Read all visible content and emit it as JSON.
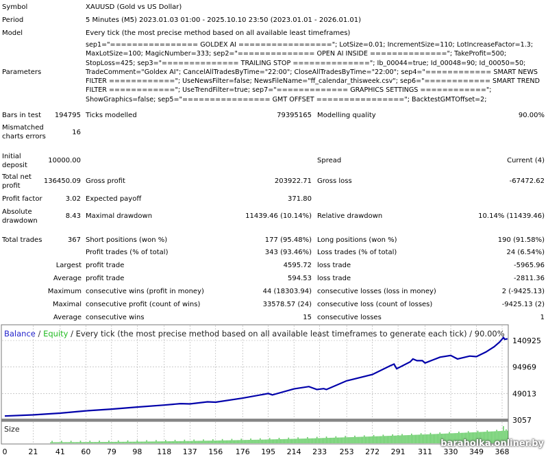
{
  "report": {
    "symbol": {
      "label": "Symbol",
      "value": "XAUUSD (Gold vs US Dollar)"
    },
    "period": {
      "label": "Period",
      "value": "5 Minutes (M5) 2023.01.03 01:00 - 2025.10.10 23:50 (2023.01.01 - 2026.01.01)"
    },
    "model": {
      "label": "Model",
      "value": "Every tick (the most precise method based on all available least timeframes)"
    },
    "parameters": {
      "label": "Parameters",
      "value": "sep1=\"================ GOLDEX AI =================\"; LotSize=0.01; IncrementSize=110; LotIncreaseFactor=1.3; MaxLotSize=100; MagicNumber=333; sep2=\"============== OPEN AI INSIDE ==============\"; TakeProfit=500; StopLoss=425; sep3=\"============== TRAILING STOP ==============\"; Ib_00044=true; Id_00048=90; Id_00050=50; TradeComment=\"Goldex AI\"; CancelAllTradesByTime=\"22:00\"; CloseAllTradesByTime=\"22:00\"; sep4=\"============ SMART NEWS FILTER ============\"; UseNewsFilter=false; NewsFileName=\"ff_calendar_thisweek.csv\"; sep6=\"============ SMART TREND FILTER ============\"; UseTrendFilter=true; sep7=\"============= GRAPHICS SETTINGS ============\"; ShowGraphics=false; sep5=\"================ GMT OFFSET ================\"; BacktestGMTOffset=2;"
    },
    "bars_in_test": {
      "label": "Bars in test",
      "value": "194795"
    },
    "ticks_modelled": {
      "label": "Ticks modelled",
      "value": "79395165"
    },
    "modelling_quality": {
      "label": "Modelling quality",
      "value": "90.00%"
    },
    "mismatched": {
      "label": "Mismatched charts errors",
      "value": "16"
    },
    "initial_deposit": {
      "label": "Initial deposit",
      "value": "10000.00"
    },
    "spread": {
      "label": "Spread",
      "value": "Current (4)"
    },
    "total_net_profit": {
      "label": "Total net profit",
      "value": "136450.09"
    },
    "gross_profit": {
      "label": "Gross profit",
      "value": "203922.71"
    },
    "gross_loss": {
      "label": "Gross loss",
      "value": "-67472.62"
    },
    "profit_factor": {
      "label": "Profit factor",
      "value": "3.02"
    },
    "expected_payoff": {
      "label": "Expected payoff",
      "value": "371.80"
    },
    "absolute_drawdown": {
      "label": "Absolute drawdown",
      "value": "8.43"
    },
    "maximal_drawdown": {
      "label": "Maximal drawdown",
      "value": "11439.46 (10.14%)"
    },
    "relative_drawdown": {
      "label": "Relative drawdown",
      "value": "10.14% (11439.46)"
    },
    "total_trades": {
      "label": "Total trades",
      "value": "367"
    },
    "short_positions": {
      "label": "Short positions (won %)",
      "value": "177 (95.48%)"
    },
    "long_positions": {
      "label": "Long positions (won %)",
      "value": "190 (91.58%)"
    },
    "profit_trades": {
      "label": "Profit trades (% of total)",
      "value": "343 (93.46%)"
    },
    "loss_trades": {
      "label": "Loss trades (% of total)",
      "value": "24 (6.54%)"
    },
    "largest": {
      "label": "Largest",
      "profit_label": "profit trade",
      "profit": "4595.72",
      "loss_label": "loss trade",
      "loss": "-5965.96"
    },
    "average": {
      "label": "Average",
      "profit_label": "profit trade",
      "profit": "594.53",
      "loss_label": "loss trade",
      "loss": "-2811.36"
    },
    "maximum": {
      "label": "Maximum",
      "profit_label": "consecutive wins (profit in money)",
      "profit": "44 (18303.94)",
      "loss_label": "consecutive losses (loss in money)",
      "loss": "2 (-9425.13)"
    },
    "maximal": {
      "label": "Maximal",
      "profit_label": "consecutive profit (count of wins)",
      "profit": "33578.57 (24)",
      "loss_label": "consecutive loss (count of losses)",
      "loss": "-9425.13 (2)"
    },
    "average_consec": {
      "label": "Average",
      "profit_label": "consecutive wins",
      "profit": "15",
      "loss_label": "consecutive losses",
      "loss": "1"
    }
  },
  "chart_data": {
    "type": "line",
    "title_balance": "Balance",
    "title_sep1": " / ",
    "title_equity": "Equity",
    "title_rest": " / Every tick (the most precise method based on all available least timeframes to generate each tick) / 90.00%",
    "size_label": "Size",
    "y_ticks": [
      "140925",
      "94969",
      "49013",
      "3057"
    ],
    "y_tick_values": [
      140925,
      94969,
      49013,
      3057
    ],
    "x_ticks": [
      "0",
      "21",
      "41",
      "60",
      "79",
      "98",
      "118",
      "137",
      "156",
      "176",
      "195",
      "214",
      "233",
      "253",
      "272",
      "291",
      "311",
      "330",
      "349",
      "368"
    ],
    "x_range": [
      0,
      372
    ],
    "balance": [
      [
        0,
        10000
      ],
      [
        21,
        12000
      ],
      [
        41,
        15000
      ],
      [
        60,
        19000
      ],
      [
        79,
        22000
      ],
      [
        98,
        25500
      ],
      [
        118,
        29000
      ],
      [
        130,
        31500
      ],
      [
        137,
        31000
      ],
      [
        150,
        34500
      ],
      [
        156,
        34000
      ],
      [
        176,
        41000
      ],
      [
        195,
        49000
      ],
      [
        198,
        46500
      ],
      [
        214,
        57000
      ],
      [
        225,
        61000
      ],
      [
        231,
        56000
      ],
      [
        236,
        57500
      ],
      [
        238,
        56000
      ],
      [
        253,
        71000
      ],
      [
        272,
        82000
      ],
      [
        285,
        97000
      ],
      [
        288,
        100000
      ],
      [
        290,
        92000
      ],
      [
        300,
        104000
      ],
      [
        302,
        109000
      ],
      [
        305,
        106000
      ],
      [
        309,
        106000
      ],
      [
        311,
        102000
      ],
      [
        322,
        112000
      ],
      [
        330,
        115000
      ],
      [
        335,
        109000
      ],
      [
        344,
        114000
      ],
      [
        349,
        113000
      ],
      [
        356,
        121000
      ],
      [
        362,
        130000
      ],
      [
        366,
        138000
      ],
      [
        369,
        146000
      ],
      [
        370,
        143000
      ],
      [
        372,
        144000
      ]
    ],
    "colors": {
      "balance": "#0000aa",
      "equity": "#22bb22",
      "size": "#66cc66",
      "grid": "#aaaaaa"
    }
  },
  "watermark": "baraholka.onliner.by"
}
